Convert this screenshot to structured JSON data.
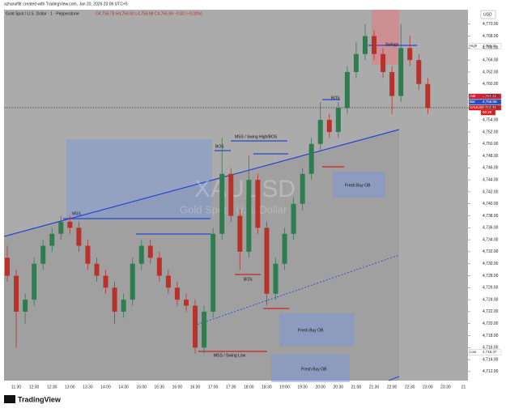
{
  "header": {
    "credit": "azharulfitr created with TradingView.com, Jan 20, 2026 23:06 UTC+5",
    "brand": "TradingView"
  },
  "chart_data": {
    "type": "candlestick",
    "title": "Gold Spot / U.S. Dollar · 1 · Pepperstone",
    "ohlc_legend": "O4,756.78 H4,756.92 L4,755.98 C4,755.99 −0.82 (−0.02%)",
    "currency": "USD",
    "watermark": "XAUUSD",
    "watermark_sub": "Gold Spot · U.S. Dollar",
    "up_color": "#2f7d4f",
    "down_color": "#b8322c",
    "open": [
      4731,
      4728,
      4722,
      4724,
      4730,
      4733,
      4735,
      4737,
      4736,
      4733,
      4730,
      4728,
      4726,
      4722,
      4724,
      4730,
      4733,
      4731,
      4728,
      4726,
      4724,
      4723,
      4716,
      4722,
      4735,
      4745,
      4738,
      4732,
      4744,
      4736,
      4725,
      4730,
      4735,
      4740,
      4745,
      4750,
      4754,
      4752,
      4756,
      4762,
      4765,
      4768,
      4765,
      4762,
      4758,
      4766,
      4764,
      4760
    ],
    "high": [
      4733,
      4729,
      4725,
      4731,
      4734,
      4736,
      4738,
      4738,
      4737,
      4734,
      4731,
      4729,
      4727,
      4725,
      4731,
      4734,
      4734,
      4732,
      4729,
      4727,
      4725,
      4724,
      4723,
      4736,
      4751,
      4746,
      4739,
      4748,
      4745,
      4737,
      4731,
      4736,
      4741,
      4746,
      4751,
      4757,
      4755,
      4757,
      4763,
      4767,
      4770,
      4769,
      4766,
      4763,
      4770,
      4768,
      4765,
      4761
    ],
    "low": [
      4727,
      4716,
      4720,
      4723,
      4729,
      4732,
      4734,
      4735,
      4732,
      4729,
      4727,
      4725,
      4720,
      4721,
      4723,
      4729,
      4730,
      4727,
      4725,
      4723,
      4722,
      4715,
      4715,
      4721,
      4734,
      4737,
      4729,
      4731,
      4735,
      4723,
      4724,
      4729,
      4734,
      4739,
      4744,
      4749,
      4751,
      4751,
      4755,
      4761,
      4764,
      4764,
      4761,
      4755,
      4757,
      4763,
      4759,
      4755
    ],
    "close": [
      4728,
      4722,
      4724,
      4730,
      4733,
      4735,
      4737,
      4736,
      4733,
      4730,
      4728,
      4726,
      4722,
      4724,
      4730,
      4733,
      4731,
      4728,
      4726,
      4724,
      4723,
      4716,
      4722,
      4735,
      4745,
      4738,
      4732,
      4744,
      4736,
      4725,
      4730,
      4735,
      4740,
      4745,
      4750,
      4754,
      4752,
      4756,
      4762,
      4765,
      4768,
      4765,
      4762,
      4758,
      4766,
      4764,
      4760,
      4756
    ],
    "time_labels": [
      "11:30",
      "12:00",
      "12:30",
      "13:00",
      "13:30",
      "14:00",
      "14:30",
      "15:00",
      "15:30",
      "16:00",
      "16:30",
      "17:00",
      "17:30",
      "18:00",
      "18:30",
      "19:00",
      "19:30",
      "20:00",
      "20:30",
      "21:00",
      "21:30",
      "22:00",
      "22:30",
      "23:00",
      "23:30",
      "21"
    ],
    "ylim": [
      4710.5,
      4772.4
    ],
    "yticks": [
      {
        "value": 4712,
        "label": "4,712.00"
      },
      {
        "value": 4714,
        "label": "4,714.00"
      },
      {
        "value": 4716,
        "label": "4,716.00"
      },
      {
        "value": 4718,
        "label": "4,718.00"
      },
      {
        "value": 4720,
        "label": "4,720.00"
      },
      {
        "value": 4722,
        "label": "4,722.00"
      },
      {
        "value": 4724,
        "label": "4,724.00"
      },
      {
        "value": 4726,
        "label": "4,726.00"
      },
      {
        "value": 4728,
        "label": "4,728.00"
      },
      {
        "value": 4730,
        "label": "4,730.00"
      },
      {
        "value": 4732,
        "label": "4,732.00"
      },
      {
        "value": 4734,
        "label": "4,734.00"
      },
      {
        "value": 4736,
        "label": "4,736.00"
      },
      {
        "value": 4738,
        "label": "4,738.00"
      },
      {
        "value": 4740,
        "label": "4,740.00"
      },
      {
        "value": 4742,
        "label": "4,742.00"
      },
      {
        "value": 4744,
        "label": "4,744.00"
      },
      {
        "value": 4746,
        "label": "4,746.00"
      },
      {
        "value": 4748,
        "label": "4,748.00"
      },
      {
        "value": 4750,
        "label": "4,750.00"
      },
      {
        "value": 4752,
        "label": "4,752.00"
      },
      {
        "value": 4754,
        "label": "4,754.00"
      },
      {
        "value": 4756,
        "label": "4,756.00"
      },
      {
        "value": 4758,
        "label": "4,758.00"
      },
      {
        "value": 4760,
        "label": "4,760.00"
      },
      {
        "value": 4762,
        "label": "4,762.00"
      },
      {
        "value": 4764,
        "label": "4,764.00"
      },
      {
        "value": 4766,
        "label": "4,766.00"
      },
      {
        "value": 4768,
        "label": "4,768.00"
      },
      {
        "value": 4770,
        "label": "4,770.00"
      }
    ],
    "price_labels": {
      "high_name": "High",
      "high": "4,766.21",
      "ask_name": "Ask",
      "ask": "4,756.45",
      "bid_name": "Bid",
      "bid": "4,756.06",
      "last_name": "XAUUSD",
      "last": "4,755.99",
      "countdown": "00:29",
      "low_name": "Low",
      "low": "4,715.37"
    },
    "annotations": {
      "mss": "MSS",
      "bos1": "BOS",
      "mss_high": "MSS / Swing High/BOS",
      "bos2": "BOS",
      "bos3": "BOS",
      "swings": "Swings",
      "ob1": "Fresh Buy OB",
      "ob2": "Fresh Buy OB",
      "ob3": "Fresh Buy OB",
      "mss_low": "MSS / Swing Low"
    }
  }
}
